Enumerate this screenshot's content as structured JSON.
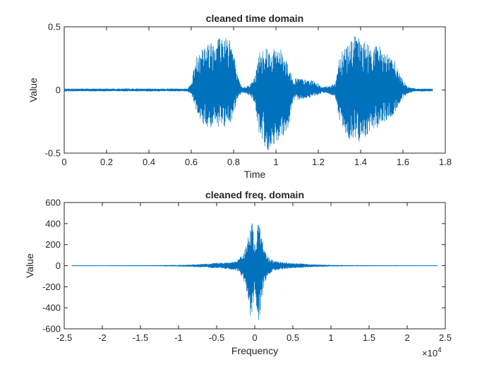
{
  "chart_data": [
    {
      "type": "line",
      "title": "cleaned time domain",
      "xlabel": "Time",
      "ylabel": "Value",
      "xlim": [
        0,
        1.8
      ],
      "ylim": [
        -0.5,
        0.5
      ],
      "xticks": [
        0,
        0.2,
        0.4,
        0.6,
        0.8,
        1,
        1.2,
        1.4,
        1.6,
        1.8
      ],
      "xtick_labels": [
        "0",
        "0.2",
        "0.4",
        "0.6",
        "0.8",
        "1",
        "1.2",
        "1.4",
        "1.6",
        "1.8"
      ],
      "yticks": [
        -0.5,
        0,
        0.5
      ],
      "ytick_labels": [
        "-0.5",
        "0",
        "0.5"
      ],
      "grid": false,
      "color": "#0072BD",
      "series": [
        {
          "x": [
            0,
            0.1,
            0.2,
            0.3,
            0.4,
            0.5,
            0.58,
            0.6,
            0.62,
            0.64,
            0.66,
            0.68,
            0.7,
            0.72,
            0.74,
            0.76,
            0.78,
            0.8,
            0.82,
            0.84,
            0.86,
            0.88,
            0.9,
            0.92,
            0.94,
            0.96,
            0.98,
            1.0,
            1.02,
            1.04,
            1.06,
            1.08,
            1.1,
            1.12,
            1.14,
            1.16,
            1.18,
            1.2,
            1.22,
            1.24,
            1.26,
            1.28,
            1.3,
            1.32,
            1.34,
            1.36,
            1.38,
            1.4,
            1.42,
            1.44,
            1.46,
            1.48,
            1.5,
            1.52,
            1.54,
            1.56,
            1.58,
            1.6,
            1.62,
            1.66,
            1.7,
            1.74
          ],
          "y_max": [
            0.01,
            0.01,
            0.01,
            0.01,
            0.01,
            0.01,
            0.01,
            0.05,
            0.25,
            0.35,
            0.36,
            0.37,
            0.42,
            0.45,
            0.43,
            0.45,
            0.46,
            0.3,
            0.1,
            0.02,
            0.03,
            0.05,
            0.1,
            0.3,
            0.36,
            0.35,
            0.3,
            0.34,
            0.33,
            0.3,
            0.2,
            0.08,
            0.1,
            0.09,
            0.08,
            0.08,
            0.07,
            0.05,
            0.02,
            0.03,
            0.04,
            0.05,
            0.28,
            0.36,
            0.37,
            0.42,
            0.43,
            0.4,
            0.39,
            0.36,
            0.35,
            0.36,
            0.34,
            0.3,
            0.25,
            0.24,
            0.15,
            0.08,
            0.03,
            0.01,
            0.01,
            0.01
          ],
          "y_min": [
            -0.01,
            -0.01,
            -0.01,
            -0.01,
            -0.01,
            -0.01,
            -0.01,
            -0.03,
            -0.15,
            -0.25,
            -0.28,
            -0.3,
            -0.3,
            -0.3,
            -0.28,
            -0.32,
            -0.3,
            -0.2,
            -0.06,
            -0.02,
            -0.03,
            -0.05,
            -0.1,
            -0.35,
            -0.44,
            -0.48,
            -0.48,
            -0.42,
            -0.38,
            -0.35,
            -0.3,
            -0.1,
            -0.08,
            -0.07,
            -0.07,
            -0.06,
            -0.05,
            -0.04,
            -0.02,
            -0.03,
            -0.04,
            -0.06,
            -0.25,
            -0.35,
            -0.38,
            -0.4,
            -0.42,
            -0.4,
            -0.38,
            -0.33,
            -0.3,
            -0.3,
            -0.28,
            -0.25,
            -0.22,
            -0.2,
            -0.12,
            -0.06,
            -0.03,
            -0.01,
            -0.01,
            -0.01
          ]
        }
      ]
    },
    {
      "type": "line",
      "title": "cleaned freq. domain",
      "xlabel": "Frequency",
      "ylabel": "Value",
      "x_multiplier": "×10",
      "x_multiplier_exp": "4",
      "xlim": [
        -2.5,
        2.5
      ],
      "ylim": [
        -600,
        600
      ],
      "xticks": [
        -2.5,
        -2,
        -1.5,
        -1,
        -0.5,
        0,
        0.5,
        1,
        1.5,
        2,
        2.5
      ],
      "xtick_labels": [
        "-2.5",
        "-2",
        "-1.5",
        "-1",
        "-0.5",
        "0",
        "0.5",
        "1",
        "1.5",
        "2",
        "2.5"
      ],
      "yticks": [
        -600,
        -400,
        -200,
        0,
        200,
        400,
        600
      ],
      "ytick_labels": [
        "-600",
        "-400",
        "-200",
        "0",
        "200",
        "400",
        "600"
      ],
      "grid": false,
      "color": "#0072BD",
      "series": [
        {
          "x": [
            -2.4,
            -2.0,
            -1.5,
            -1.2,
            -1.0,
            -0.8,
            -0.6,
            -0.5,
            -0.4,
            -0.3,
            -0.25,
            -0.2,
            -0.15,
            -0.12,
            -0.08,
            -0.05,
            -0.02,
            0,
            0.02,
            0.05,
            0.08,
            0.12,
            0.15,
            0.2,
            0.25,
            0.3,
            0.4,
            0.5,
            0.6,
            0.8,
            1.0,
            1.2,
            1.5,
            2.0,
            2.4
          ],
          "y_max": [
            2,
            2,
            3,
            4,
            6,
            10,
            20,
            25,
            30,
            40,
            45,
            70,
            120,
            180,
            300,
            520,
            350,
            150,
            350,
            520,
            300,
            180,
            120,
            70,
            45,
            40,
            30,
            25,
            20,
            10,
            6,
            4,
            3,
            2,
            2
          ],
          "y_min": [
            -2,
            -2,
            -3,
            -4,
            -6,
            -10,
            -18,
            -25,
            -30,
            -40,
            -45,
            -70,
            -130,
            -200,
            -420,
            -520,
            -420,
            -200,
            -420,
            -520,
            -420,
            -200,
            -130,
            -70,
            -45,
            -40,
            -30,
            -25,
            -18,
            -10,
            -6,
            -4,
            -3,
            -2,
            -2
          ]
        }
      ]
    }
  ]
}
